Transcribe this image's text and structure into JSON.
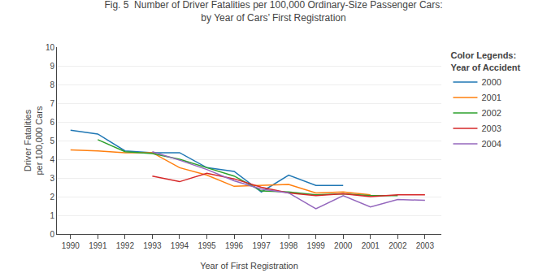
{
  "chart_data": {
    "type": "line",
    "title": "Fig. 5  Number of Driver Fatalities per 100,000 Ordinary-Size Passenger Cars:",
    "subtitle": "by Year of Cars’ First Registration",
    "xlabel": "Year of First Registration",
    "ylabel": [
      "Driver Fatalities",
      "per 100,000 Cars"
    ],
    "legend_title": [
      "Color Legends:",
      "Year of Accident"
    ],
    "series": [
      {
        "name": "2000",
        "x": [
          1990,
          1991,
          1992,
          1993,
          1994,
          1995,
          1996,
          1997,
          1998,
          1999,
          2000
        ],
        "values": [
          5.55,
          5.35,
          4.45,
          4.35,
          4.35,
          3.55,
          3.35,
          2.25,
          3.15,
          2.6,
          2.6
        ]
      },
      {
        "name": "2001",
        "x": [
          1990,
          1991,
          1992,
          1993,
          1994,
          1995,
          1996,
          1997,
          1998,
          1999,
          2000,
          2001
        ],
        "values": [
          4.5,
          4.45,
          4.35,
          4.35,
          3.55,
          3.15,
          2.55,
          2.6,
          2.65,
          2.2,
          2.25,
          2.1
        ]
      },
      {
        "name": "2002",
        "x": [
          1991,
          1992,
          1993,
          1994,
          1995,
          1996,
          1997,
          1998,
          1999,
          2000,
          2001,
          2002
        ],
        "values": [
          5.05,
          4.4,
          4.3,
          4.0,
          3.55,
          3.1,
          2.3,
          2.25,
          2.1,
          2.15,
          2.05,
          2.05
        ]
      },
      {
        "name": "2003",
        "x": [
          1993,
          1994,
          1995,
          1996,
          1997,
          1998,
          1999,
          2000,
          2001,
          2002,
          2003
        ],
        "values": [
          3.1,
          2.8,
          3.25,
          2.95,
          2.5,
          2.2,
          2.05,
          2.15,
          2.0,
          2.1,
          2.1
        ]
      },
      {
        "name": "2004",
        "x": [
          1993,
          1994,
          1995,
          1996,
          1997,
          1998,
          1999,
          2000,
          2001,
          2002,
          2003
        ],
        "values": [
          4.4,
          3.95,
          3.45,
          2.85,
          2.4,
          2.2,
          1.35,
          2.05,
          1.45,
          1.85,
          1.8
        ]
      }
    ],
    "xlim": [
      1989.5,
      2003.6
    ],
    "xticks": [
      1990,
      1991,
      1992,
      1993,
      1994,
      1995,
      1996,
      1997,
      1998,
      1999,
      2000,
      2001,
      2002,
      2003
    ],
    "ylim": [
      0,
      10
    ],
    "yticks": [
      0,
      1,
      2,
      3,
      4,
      5,
      6,
      7,
      8,
      9,
      10
    ],
    "grid": "y",
    "legend": "right"
  }
}
